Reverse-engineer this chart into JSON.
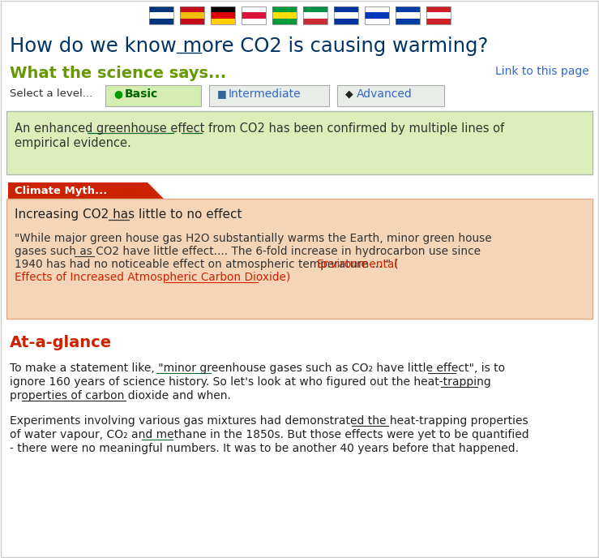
{
  "page_bg": "#ffffff",
  "title": "How do we know more CO2 is causing warming?",
  "title_color": "#003366",
  "science_says_label": "What the science says...",
  "science_says_color": "#669900",
  "link_text": "Link to this page",
  "link_color": "#3366cc",
  "tab_bg_active": "#d4edb0",
  "tab_bg_inactive": "#e8ede8",
  "green_box_bg": "#ddeebb",
  "green_box_border": "#aabbaa",
  "green_box_text_line1": "An enhanced greenhouse effect from CO2 has been confirmed by multiple lines of",
  "green_box_text_line2": "empirical evidence.",
  "green_box_text_color": "#333333",
  "myth_label_text": "Climate Myth...",
  "myth_label_bg": "#cc2200",
  "myth_box_bg": "#f5d5b8",
  "myth_box_border": "#ddaa88",
  "myth_heading": "Increasing CO2 has little to no effect",
  "myth_quote_link_color": "#cc2200",
  "at_glance_heading": "At-a-glance",
  "at_glance_heading_color": "#cc2200",
  "para1_line1": "To make a statement like, \"minor greenhouse gases such as CO₂ have little effect\", is to",
  "para1_line2": "ignore 160 years of science history. So let's look at who figured out the heat-trapping",
  "para1_line3": "properties of carbon dioxide and when.",
  "para2_line1": "Experiments involving various gas mixtures had demonstrated the heat-trapping properties",
  "para2_line2": "of water vapour, CO₂ and methane in the 1850s. But those effects were yet to be quantified",
  "para2_line3": "- there were no meaningful numbers. It was to be another 40 years before that happened.",
  "body_text_color": "#222222",
  "flag_colors": [
    [
      "#003580",
      "#ffffff",
      "#003580"
    ],
    [
      "#c60b1e",
      "#f1bf00",
      "#c60b1e"
    ],
    [
      "#000000",
      "#dd0000",
      "#ffce00"
    ],
    [
      "#ffffff",
      "#dc143c",
      "#ffffff"
    ],
    [
      "#009c3b",
      "#ffdf00",
      "#009c3b"
    ],
    [
      "#009246",
      "#ffffff",
      "#ce2b37"
    ],
    [
      "#0033a0",
      "#ffffff",
      "#0033a0"
    ],
    [
      "#ffffff",
      "#0038b8",
      "#ffffff"
    ],
    [
      "#003da5",
      "#ffffff",
      "#003da5"
    ],
    [
      "#ce2028",
      "#ffffff",
      "#ce2028"
    ]
  ],
  "fig_width": 7.39,
  "fig_height": 6.88,
  "dpi": 100
}
